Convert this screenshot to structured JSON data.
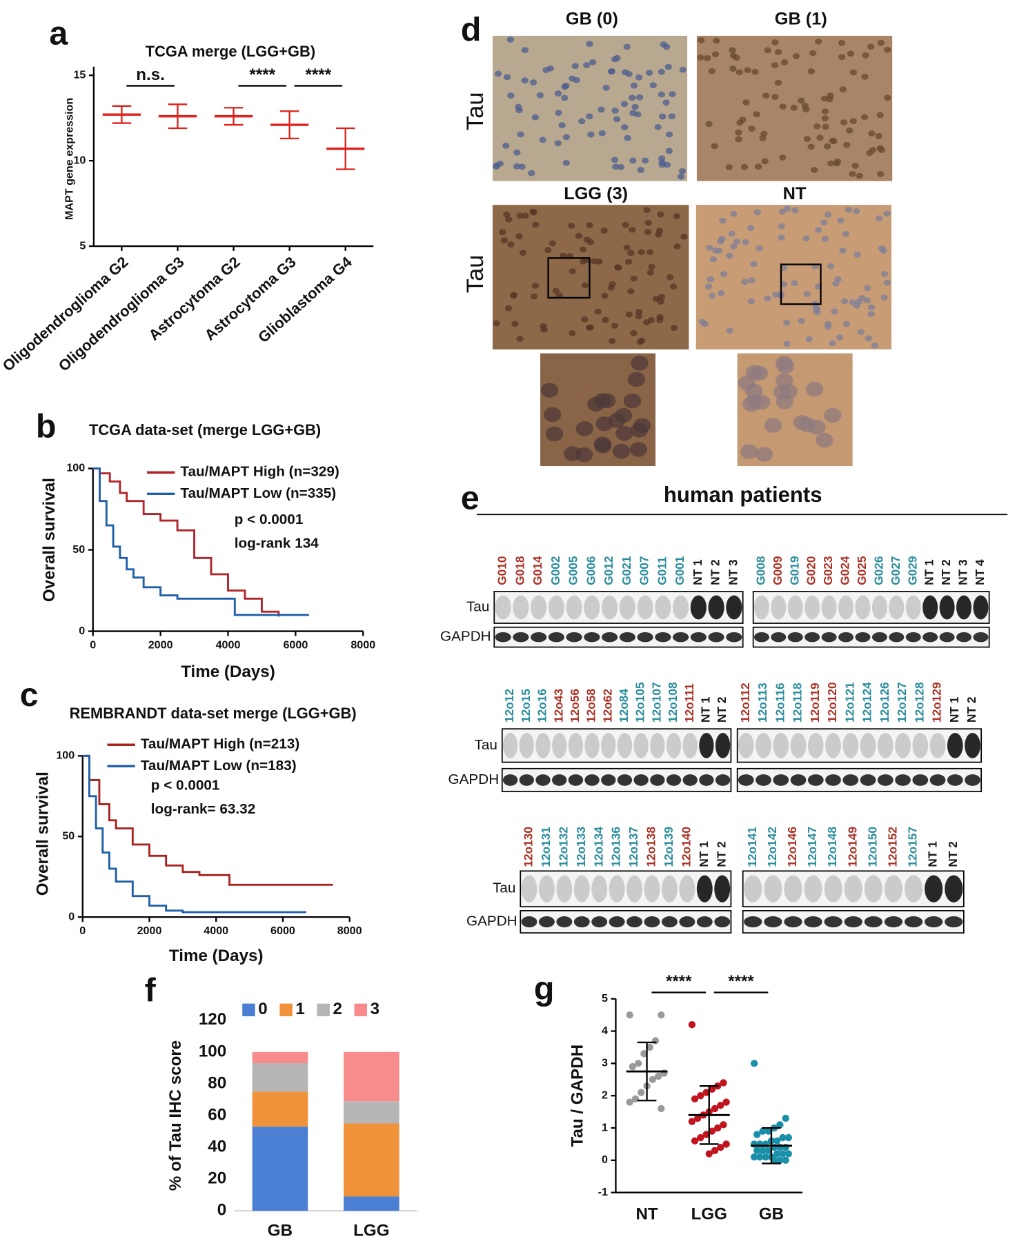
{
  "chart_data": [
    {
      "type": "strip",
      "panel": "a",
      "title": "TCGA merge (LGG+GB)",
      "y_label": "MAPT gene expression",
      "categories": [
        "Oligodendroglioma G2",
        "Oligodendroglioma G3",
        "Astrocytoma G2",
        "Astrocytoma G3",
        "Glioblastoma G4"
      ],
      "values": [
        12.7,
        12.6,
        12.6,
        12.1,
        10.7
      ],
      "errors": [
        0.5,
        0.7,
        0.5,
        0.8,
        1.2
      ],
      "color": "#e0201b",
      "ylim": [
        5,
        15.5
      ],
      "yticks": [
        5,
        10,
        15
      ],
      "significance": [
        {
          "label": "n.s.",
          "between": [
            0,
            1
          ]
        },
        {
          "label": "****",
          "between": [
            2,
            3
          ]
        },
        {
          "label": "****",
          "between": [
            3,
            4
          ]
        }
      ]
    },
    {
      "type": "km",
      "panel": "b",
      "title": "TCGA data-set (merge LGG+GB)",
      "x_label": "Time (Days)",
      "y_label": "Overall survival",
      "xlim": [
        0,
        8000
      ],
      "xticks": [
        0,
        2000,
        4000,
        6000,
        8000
      ],
      "ylim": [
        0,
        100
      ],
      "yticks": [
        0,
        50,
        100
      ],
      "annotations": [
        "p < 0.0001",
        "log-rank 134"
      ],
      "series": [
        {
          "name": "Tau/MAPT High (n=329)",
          "color": "#b0252a",
          "x": [
            0,
            200,
            500,
            800,
            1000,
            1500,
            2000,
            2500,
            3000,
            3500,
            4000,
            4500,
            5000,
            5500
          ],
          "values": [
            100,
            97,
            92,
            85,
            80,
            72,
            68,
            62,
            45,
            35,
            25,
            20,
            12,
            9
          ]
        },
        {
          "name": "Tau/MAPT Low (n=335)",
          "color": "#1f5fa8",
          "x": [
            0,
            200,
            400,
            600,
            800,
            1000,
            1200,
            1500,
            2000,
            2500,
            3000,
            3500,
            4000,
            4200,
            6400
          ],
          "values": [
            100,
            80,
            65,
            52,
            45,
            38,
            33,
            27,
            22,
            20,
            20,
            20,
            20,
            10,
            10
          ]
        }
      ]
    },
    {
      "type": "km",
      "panel": "c",
      "title": "REMBRANDT data-set merge (LGG+GB)",
      "x_label": "Time (Days)",
      "y_label": "Overall survival",
      "xlim": [
        0,
        8000
      ],
      "xticks": [
        0,
        2000,
        4000,
        6000,
        8000
      ],
      "ylim": [
        0,
        100
      ],
      "yticks": [
        0,
        50,
        100
      ],
      "annotations": [
        "p < 0.0001",
        "log-rank= 63.32"
      ],
      "series": [
        {
          "name": "Tau/MAPT High (n=213)",
          "color": "#a8231f",
          "x": [
            0,
            200,
            500,
            800,
            1000,
            1500,
            2000,
            2500,
            3000,
            3500,
            4300,
            4400,
            7500
          ],
          "values": [
            100,
            85,
            70,
            60,
            55,
            45,
            38,
            32,
            28,
            26,
            26,
            20,
            20
          ]
        },
        {
          "name": "Tau/MAPT Low (n=183)",
          "color": "#1f5fa8",
          "x": [
            0,
            200,
            400,
            600,
            800,
            1000,
            1500,
            2000,
            2500,
            3000,
            6700
          ],
          "values": [
            100,
            75,
            55,
            40,
            30,
            22,
            13,
            7,
            4,
            3,
            3
          ]
        }
      ]
    },
    {
      "type": "stacked_bar",
      "panel": "f",
      "y_label": "% of Tau IHC score",
      "categories": [
        "GB",
        "LGG"
      ],
      "ylim": [
        0,
        120
      ],
      "yticks": [
        0,
        20,
        40,
        60,
        80,
        100,
        120
      ],
      "series": [
        {
          "name": "0",
          "color": "#4a7fd4",
          "values": [
            53,
            9
          ]
        },
        {
          "name": "1",
          "color": "#f0923a",
          "values": [
            22,
            46
          ]
        },
        {
          "name": "2",
          "color": "#b5b5b5",
          "values": [
            18,
            14
          ]
        },
        {
          "name": "3",
          "color": "#f88c8c",
          "values": [
            7,
            31
          ]
        }
      ]
    },
    {
      "type": "dot",
      "panel": "g",
      "y_label": "Tau / GAPDH",
      "categories": [
        "NT",
        "LGG",
        "GB"
      ],
      "colors": [
        "#9a9a9a",
        "#c0141e",
        "#1a8fa8"
      ],
      "points": [
        [
          4.5,
          4.5,
          3.7,
          3.5,
          3.3,
          3.0,
          2.9,
          2.7,
          2.6,
          2.5,
          2.3,
          2.1,
          1.9,
          1.8,
          1.6
        ],
        [
          4.2,
          2.4,
          2.3,
          2.2,
          2.1,
          2.0,
          1.9,
          1.8,
          1.7,
          1.6,
          1.5,
          1.4,
          1.3,
          1.2,
          1.1,
          1.0,
          0.9,
          0.8,
          0.7,
          0.6,
          0.5,
          0.4,
          0.3,
          0.2
        ],
        [
          3.0,
          1.3,
          1.1,
          1.0,
          0.9,
          0.9,
          0.8,
          0.7,
          0.7,
          0.6,
          0.6,
          0.5,
          0.5,
          0.5,
          0.4,
          0.4,
          0.4,
          0.3,
          0.3,
          0.3,
          0.2,
          0.2,
          0.2,
          0.1,
          0.1,
          0.1,
          0.1,
          0.0,
          0.0,
          0.0
        ]
      ],
      "values": [
        2.75,
        1.4,
        0.45
      ],
      "errors": [
        0.9,
        0.9,
        0.55
      ],
      "ylim": [
        -1,
        5
      ],
      "yticks": [
        -1,
        0,
        1,
        2,
        3,
        4,
        5
      ],
      "significance": [
        {
          "label": "****",
          "between": [
            0,
            1
          ]
        },
        {
          "label": "****",
          "between": [
            1,
            2
          ]
        }
      ]
    }
  ],
  "figure": {
    "d": {
      "panel": "d",
      "row_label": "Tau",
      "images": [
        "GB (0)",
        "GB (1)",
        "LGG (3)",
        "NT"
      ]
    },
    "e": {
      "panel": "e",
      "title": "human patients",
      "tau_label": "Tau",
      "gapdh_label": "GAPDH",
      "groups": [
        {
          "lanes": [
            "G010",
            "G018",
            "G014",
            "G002",
            "G005",
            "G006",
            "G012",
            "G021",
            "G007",
            "G011",
            "G001",
            "NT 1",
            "NT 2",
            "NT 3"
          ],
          "lane_colors": [
            "#a93226",
            "#a93226",
            "#a93226",
            "#2a8c9c",
            "#2a8c9c",
            "#2a8c9c",
            "#2a8c9c",
            "#2a8c9c",
            "#2a8c9c",
            "#2a8c9c",
            "#2a8c9c",
            "#1a1a1a",
            "#1a1a1a",
            "#1a1a1a"
          ]
        },
        {
          "lanes": [
            "G008",
            "G009",
            "G019",
            "G020",
            "G023",
            "G024",
            "G025",
            "G026",
            "G027",
            "G029",
            "NT 1",
            "NT 2",
            "NT 3",
            "NT 4"
          ],
          "lane_colors": [
            "#2a8c9c",
            "#a93226",
            "#2a8c9c",
            "#a93226",
            "#a93226",
            "#a93226",
            "#a93226",
            "#2a8c9c",
            "#2a8c9c",
            "#2a8c9c",
            "#1a1a1a",
            "#1a1a1a",
            "#1a1a1a",
            "#1a1a1a"
          ]
        },
        {
          "lanes": [
            "12o12",
            "12o15",
            "12o16",
            "12o43",
            "12o56",
            "12o58",
            "12o62",
            "12o84",
            "12o105",
            "12o107",
            "12o108",
            "12o111",
            "NT 1",
            "NT 2"
          ],
          "lane_colors": [
            "#2a8c9c",
            "#2a8c9c",
            "#2a8c9c",
            "#a93226",
            "#a93226",
            "#a93226",
            "#a93226",
            "#2a8c9c",
            "#2a8c9c",
            "#2a8c9c",
            "#2a8c9c",
            "#a93226",
            "#1a1a1a",
            "#1a1a1a"
          ]
        },
        {
          "lanes": [
            "12o112",
            "12o113",
            "12o116",
            "12o118",
            "12o119",
            "12o120",
            "12o121",
            "12o124",
            "12o126",
            "12o127",
            "12o128",
            "12o129",
            "NT 1",
            "NT 2"
          ],
          "lane_colors": [
            "#a93226",
            "#2a8c9c",
            "#2a8c9c",
            "#2a8c9c",
            "#a93226",
            "#a93226",
            "#2a8c9c",
            "#2a8c9c",
            "#2a8c9c",
            "#2a8c9c",
            "#2a8c9c",
            "#a93226",
            "#1a1a1a",
            "#1a1a1a"
          ]
        },
        {
          "lanes": [
            "12o130",
            "12o131",
            "12o132",
            "12o133",
            "12o134",
            "12o136",
            "12o137",
            "12o138",
            "12o139",
            "12o140",
            "NT 1",
            "NT 2"
          ],
          "lane_colors": [
            "#a93226",
            "#2a8c9c",
            "#2a8c9c",
            "#2a8c9c",
            "#2a8c9c",
            "#2a8c9c",
            "#2a8c9c",
            "#a93226",
            "#2a8c9c",
            "#a93226",
            "#1a1a1a",
            "#1a1a1a"
          ]
        },
        {
          "lanes": [
            "12o141",
            "12o142",
            "12o146",
            "12o147",
            "12o148",
            "12o149",
            "12o150",
            "12o152",
            "12o157",
            "NT 1",
            "NT 2"
          ],
          "lane_colors": [
            "#2a8c9c",
            "#2a8c9c",
            "#a93226",
            "#2a8c9c",
            "#2a8c9c",
            "#a93226",
            "#2a8c9c",
            "#a93226",
            "#2a8c9c",
            "#1a1a1a",
            "#1a1a1a"
          ]
        }
      ]
    }
  }
}
